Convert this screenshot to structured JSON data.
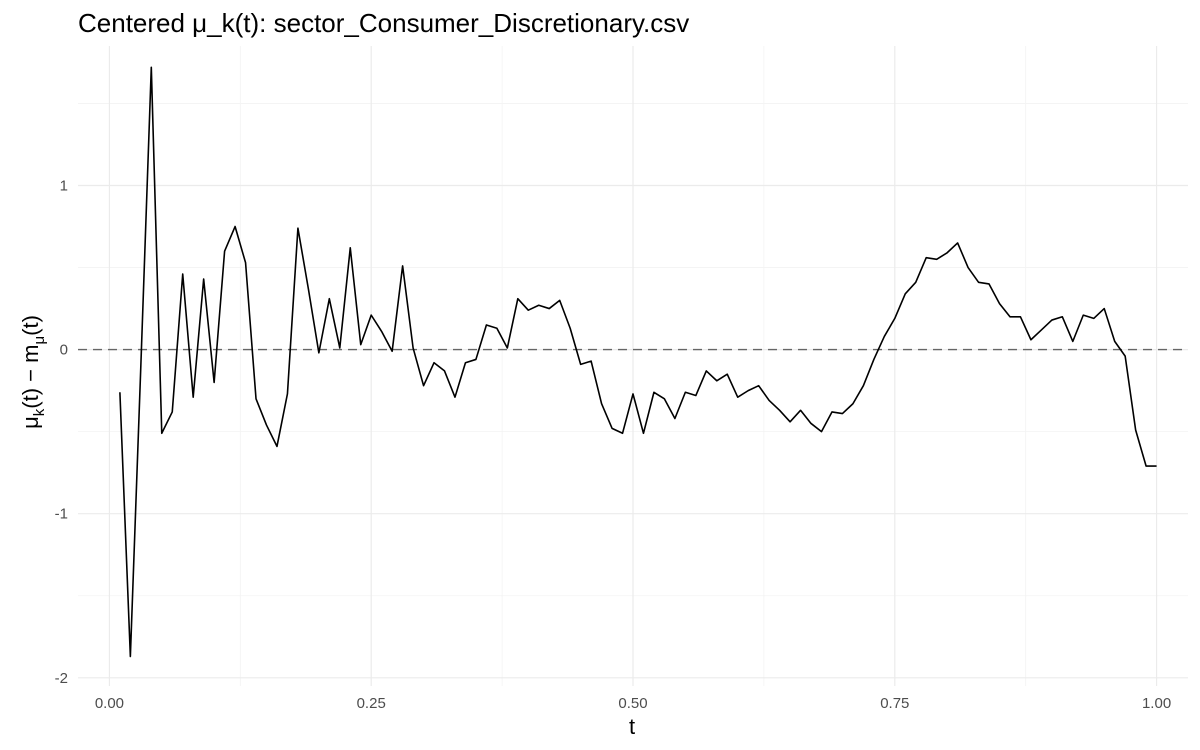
{
  "chart_data": {
    "type": "line",
    "title": "Centered μ_k(t): sector_Consumer_Discretionary.csv",
    "xlabel": "t",
    "ylabel_parts": {
      "mu": "μ",
      "sub_k": "k",
      "mid": "(t) − m",
      "sub_mu": "μ",
      "end": "(t)"
    },
    "xlim": [
      -0.03,
      1.03
    ],
    "ylim": [
      -2.05,
      1.85
    ],
    "x_ticks": [
      0.0,
      0.25,
      0.5,
      0.75,
      1.0
    ],
    "x_tick_labels": [
      "0.00",
      "0.25",
      "0.50",
      "0.75",
      "1.00"
    ],
    "y_ticks": [
      -2,
      -1,
      0,
      1
    ],
    "y_tick_labels": [
      "-2",
      "-1",
      "0",
      "1"
    ],
    "grid": true,
    "reference_line": {
      "y": 0,
      "style": "dashed",
      "color": "#666666"
    },
    "series": [
      {
        "color": "#000000",
        "x": [
          0.01,
          0.02,
          0.03,
          0.04,
          0.05,
          0.06,
          0.07,
          0.08,
          0.09,
          0.1,
          0.11,
          0.12,
          0.13,
          0.14,
          0.15,
          0.16,
          0.17,
          0.18,
          0.19,
          0.2,
          0.21,
          0.22,
          0.23,
          0.24,
          0.25,
          0.26,
          0.27,
          0.28,
          0.29,
          0.3,
          0.31,
          0.32,
          0.33,
          0.34,
          0.35,
          0.36,
          0.37,
          0.38,
          0.39,
          0.4,
          0.41,
          0.42,
          0.43,
          0.44,
          0.45,
          0.46,
          0.47,
          0.48,
          0.49,
          0.5,
          0.51,
          0.52,
          0.53,
          0.54,
          0.55,
          0.56,
          0.57,
          0.58,
          0.59,
          0.6,
          0.61,
          0.62,
          0.63,
          0.64,
          0.65,
          0.66,
          0.67,
          0.68,
          0.69,
          0.7,
          0.71,
          0.72,
          0.73,
          0.74,
          0.75,
          0.76,
          0.77,
          0.78,
          0.79,
          0.8,
          0.81,
          0.82,
          0.83,
          0.84,
          0.85,
          0.86,
          0.87,
          0.88,
          0.89,
          0.9,
          0.91,
          0.92,
          0.93,
          0.94,
          0.95,
          0.96,
          0.97,
          0.98,
          0.99,
          1.0
        ],
        "y": [
          -0.26,
          -1.87,
          -0.1,
          1.72,
          -0.51,
          -0.38,
          0.46,
          -0.29,
          0.43,
          -0.2,
          0.6,
          0.75,
          0.53,
          -0.3,
          -0.46,
          -0.59,
          -0.27,
          0.74,
          0.37,
          -0.02,
          0.31,
          0.01,
          0.62,
          0.03,
          0.21,
          0.11,
          -0.01,
          0.51,
          0.01,
          -0.22,
          -0.08,
          -0.13,
          -0.29,
          -0.08,
          -0.06,
          0.15,
          0.13,
          0.01,
          0.31,
          0.24,
          0.27,
          0.25,
          0.3,
          0.13,
          -0.09,
          -0.07,
          -0.33,
          -0.48,
          -0.51,
          -0.27,
          -0.51,
          -0.26,
          -0.3,
          -0.42,
          -0.26,
          -0.28,
          -0.13,
          -0.19,
          -0.15,
          -0.29,
          -0.25,
          -0.22,
          -0.31,
          -0.37,
          -0.44,
          -0.37,
          -0.45,
          -0.5,
          -0.38,
          -0.39,
          -0.33,
          -0.22,
          -0.06,
          0.08,
          0.19,
          0.34,
          0.41,
          0.56,
          0.55,
          0.59,
          0.65,
          0.5,
          0.41,
          0.4,
          0.28,
          0.2,
          0.2,
          0.06,
          0.12,
          0.18,
          0.2,
          0.05,
          0.21,
          0.19,
          0.25,
          0.05,
          -0.04,
          -0.49,
          -0.71,
          -0.71
        ]
      }
    ]
  }
}
